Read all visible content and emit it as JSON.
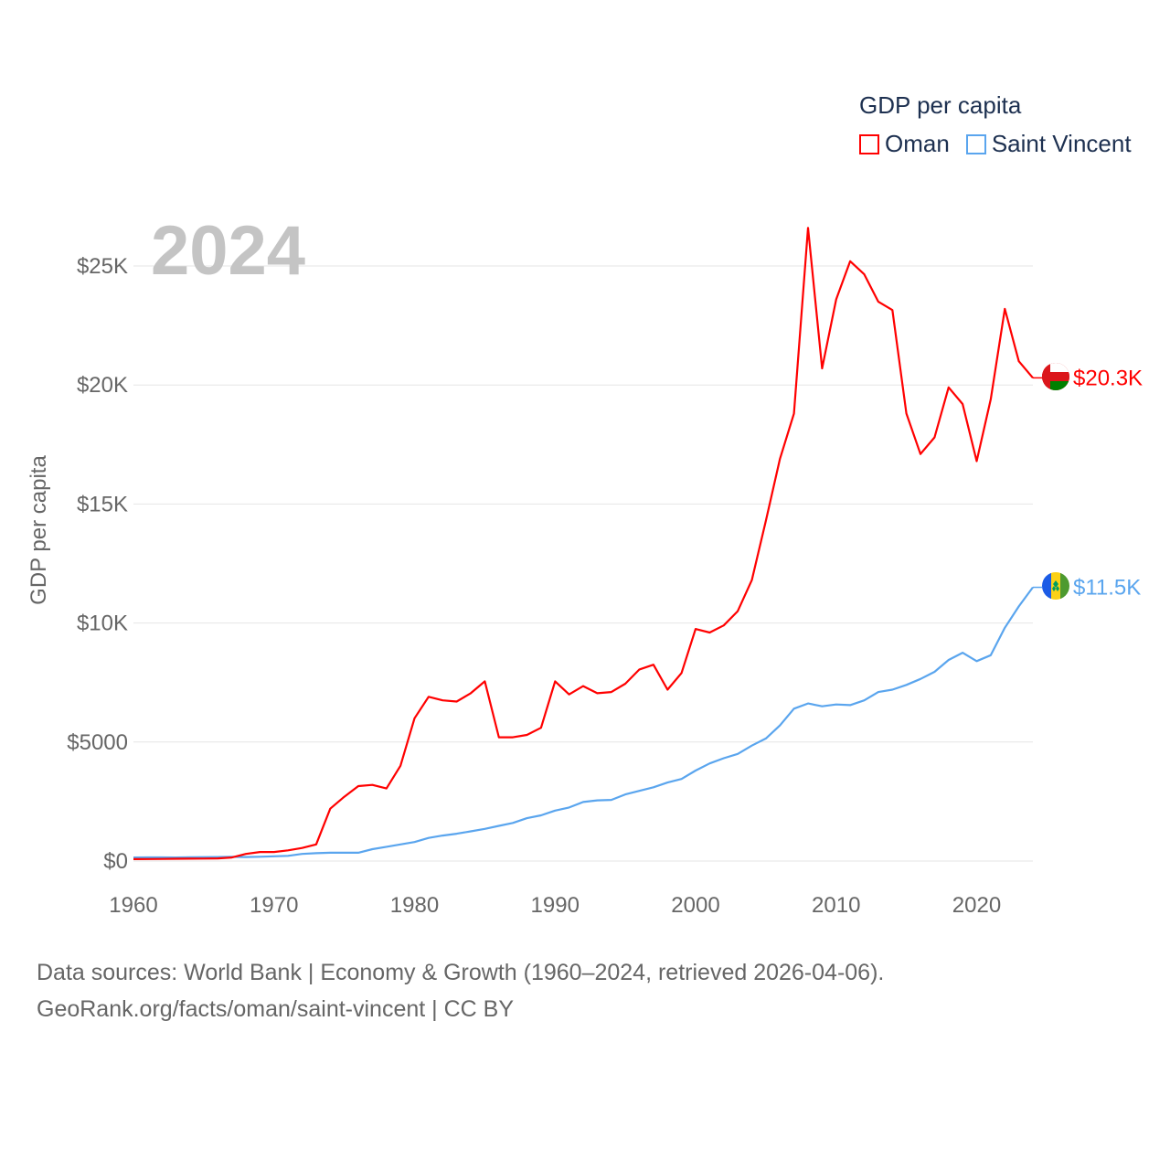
{
  "chart_data": {
    "type": "line",
    "title": "GDP per capita",
    "ylabel": "GDP per capita",
    "xlabel": "",
    "year_overlay": "2024",
    "xlim": [
      1960,
      2024
    ],
    "ylim": [
      0,
      27000
    ],
    "x_ticks": [
      1960,
      1970,
      1980,
      1990,
      2000,
      2010,
      2020
    ],
    "x_tick_labels": [
      "1960",
      "1970",
      "1980",
      "1990",
      "2000",
      "2010",
      "2020"
    ],
    "y_ticks": [
      0,
      5000,
      10000,
      15000,
      20000,
      25000
    ],
    "y_tick_labels": [
      "$0",
      "$5000",
      "$10K",
      "$15K",
      "$20K",
      "$25K"
    ],
    "grid": true,
    "legend_placement": "top-right",
    "x": [
      1960,
      1961,
      1962,
      1963,
      1964,
      1965,
      1966,
      1967,
      1968,
      1969,
      1970,
      1971,
      1972,
      1973,
      1974,
      1975,
      1976,
      1977,
      1978,
      1979,
      1980,
      1981,
      1982,
      1983,
      1984,
      1985,
      1986,
      1987,
      1988,
      1989,
      1990,
      1991,
      1992,
      1993,
      1994,
      1995,
      1996,
      1997,
      1998,
      1999,
      2000,
      2001,
      2002,
      2003,
      2004,
      2005,
      2006,
      2007,
      2008,
      2009,
      2010,
      2011,
      2012,
      2013,
      2014,
      2015,
      2016,
      2017,
      2018,
      2019,
      2020,
      2021,
      2022,
      2023,
      2024
    ],
    "series": [
      {
        "name": "Oman",
        "color": "#ff0000",
        "end_label": "$20.3K",
        "values": [
          80,
          85,
          90,
          95,
          100,
          105,
          110,
          150,
          300,
          380,
          380,
          450,
          550,
          700,
          2200,
          2700,
          3150,
          3200,
          3050,
          4000,
          6000,
          6900,
          6750,
          6700,
          7050,
          7550,
          5200,
          5200,
          5300,
          5600,
          7550,
          7000,
          7350,
          7050,
          7100,
          7450,
          8050,
          8250,
          7200,
          7900,
          9750,
          9600,
          9900,
          10500,
          11800,
          14300,
          16900,
          18800,
          26600,
          20700,
          23600,
          25200,
          24650,
          23500,
          23150,
          18800,
          17100,
          17800,
          19900,
          19200,
          16800,
          19400,
          23200,
          21000,
          20300
        ]
      },
      {
        "name": "Saint Vincent",
        "color": "#5aa5ee",
        "end_label": "$11.5K",
        "values": [
          150,
          155,
          155,
          150,
          160,
          165,
          170,
          175,
          170,
          180,
          200,
          220,
          300,
          330,
          350,
          350,
          350,
          500,
          600,
          700,
          800,
          970,
          1070,
          1150,
          1250,
          1350,
          1480,
          1600,
          1800,
          1920,
          2120,
          2250,
          2480,
          2550,
          2570,
          2800,
          2950,
          3100,
          3300,
          3450,
          3800,
          4100,
          4320,
          4500,
          4850,
          5150,
          5700,
          6400,
          6620,
          6500,
          6580,
          6550,
          6750,
          7100,
          7200,
          7400,
          7650,
          7950,
          8450,
          8750,
          8400,
          8650,
          9800,
          10700,
          11500
        ]
      }
    ]
  },
  "footer": {
    "line1": "Data sources: World Bank | Economy & Growth (1960–2024, retrieved 2026-04-06).",
    "line2": "GeoRank.org/facts/oman/saint-vincent | CC BY"
  }
}
